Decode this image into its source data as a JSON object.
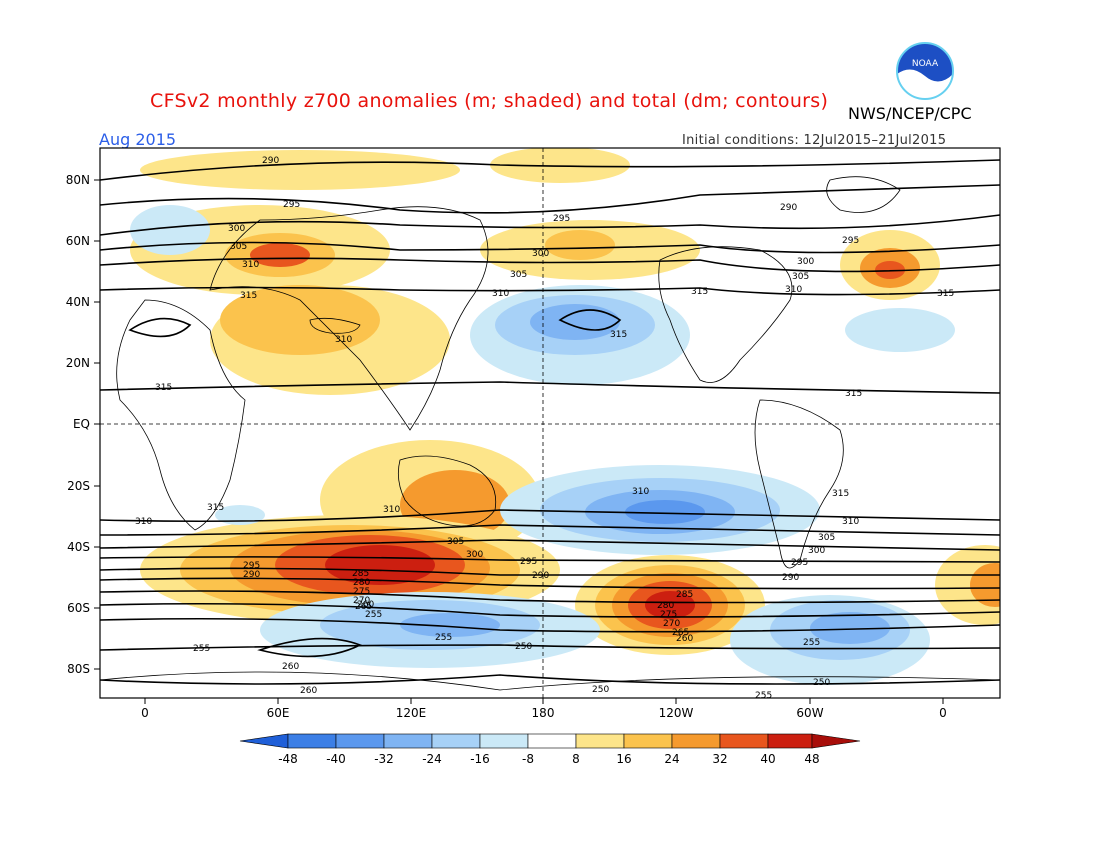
{
  "title": "CFSv2 monthly z700 anomalies (m; shaded) and total (dm; contours)",
  "agency": "NWS/NCEP/CPC",
  "month": "Aug 2015",
  "initial_conditions": "Initial conditions: 12Jul2015–21Jul2015",
  "logo_text": "NOAA",
  "lat_labels": [
    "80N",
    "60N",
    "40N",
    "20N",
    "EQ",
    "20S",
    "40S",
    "60S",
    "80S"
  ],
  "lon_labels": [
    "0",
    "60E",
    "120E",
    "180",
    "120W",
    "60W",
    "0"
  ],
  "colorbar": {
    "labels": [
      "-48",
      "-40",
      "-32",
      "-24",
      "-16",
      "-8",
      "8",
      "16",
      "24",
      "32",
      "40",
      "48"
    ],
    "colors": [
      "#1f5fd8",
      "#3c7fe6",
      "#5b98ee",
      "#7fb4f3",
      "#a7d1f7",
      "#cbe9f7",
      "#ffffff",
      "#fde58a",
      "#fbc34d",
      "#f59a2e",
      "#e8561e",
      "#cc1f10"
    ]
  },
  "contour_labels": [
    "290",
    "295",
    "300",
    "305",
    "310",
    "315",
    "250",
    "255",
    "260",
    "265",
    "270",
    "275",
    "280",
    "285"
  ]
}
